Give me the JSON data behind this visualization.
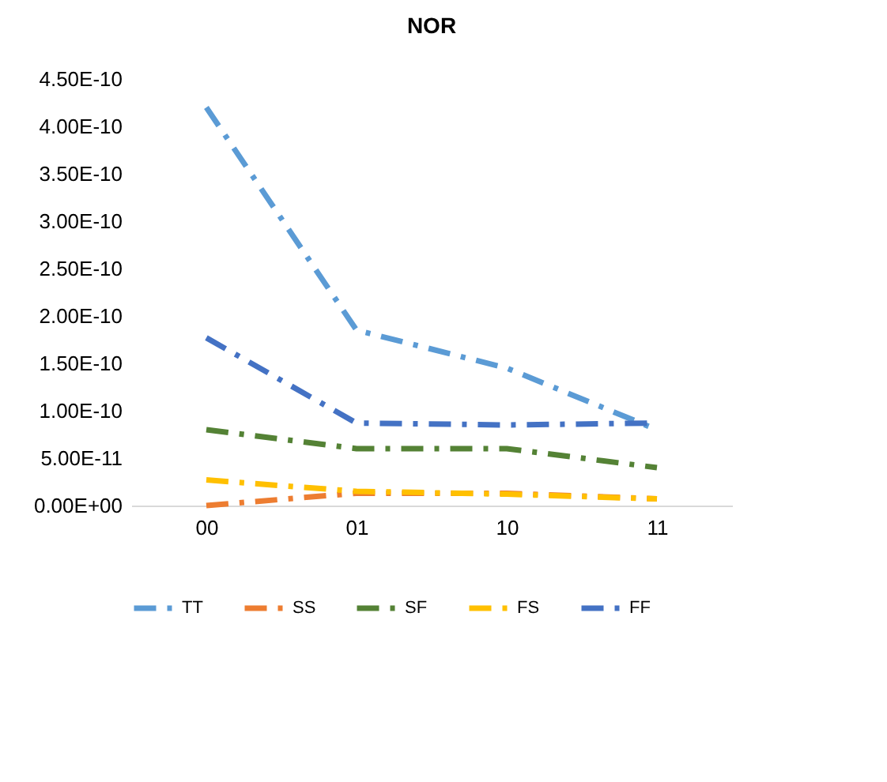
{
  "chart_data": {
    "type": "line",
    "title": "NOR",
    "categories": [
      "00",
      "01",
      "10",
      "11"
    ],
    "series": [
      {
        "name": "TT",
        "color": "#5b9bd5",
        "values": [
          4.2e-10,
          1.85e-10,
          1.45e-10,
          8e-11
        ]
      },
      {
        "name": "SS",
        "color": "#ed7d31",
        "values": [
          0,
          1.3e-11,
          1.3e-11,
          7e-12
        ]
      },
      {
        "name": "SF",
        "color": "#548235",
        "values": [
          8e-11,
          6e-11,
          6e-11,
          4e-11
        ]
      },
      {
        "name": "FS",
        "color": "#ffc000",
        "values": [
          2.7e-11,
          1.5e-11,
          1.2e-11,
          7e-12
        ]
      },
      {
        "name": "FF",
        "color": "#4472c4",
        "values": [
          1.77e-10,
          8.7e-11,
          8.5e-11,
          8.7e-11
        ]
      }
    ],
    "ylim": [
      0,
      4.5e-10
    ],
    "yticks": [
      {
        "value": 0,
        "label": "0.00E+00"
      },
      {
        "value": 5e-11,
        "label": "5.00E-11"
      },
      {
        "value": 1e-10,
        "label": "1.00E-10"
      },
      {
        "value": 1.5e-10,
        "label": "1.50E-10"
      },
      {
        "value": 2e-10,
        "label": "2.00E-10"
      },
      {
        "value": 2.5e-10,
        "label": "2.50E-10"
      },
      {
        "value": 3e-10,
        "label": "3.00E-10"
      },
      {
        "value": 3.5e-10,
        "label": "3.50E-10"
      },
      {
        "value": 4e-10,
        "label": "4.00E-10"
      },
      {
        "value": 4.5e-10,
        "label": "4.50E-10"
      }
    ],
    "grid": false,
    "legend": "bottom",
    "line_style": "dashed",
    "marker": "none"
  }
}
